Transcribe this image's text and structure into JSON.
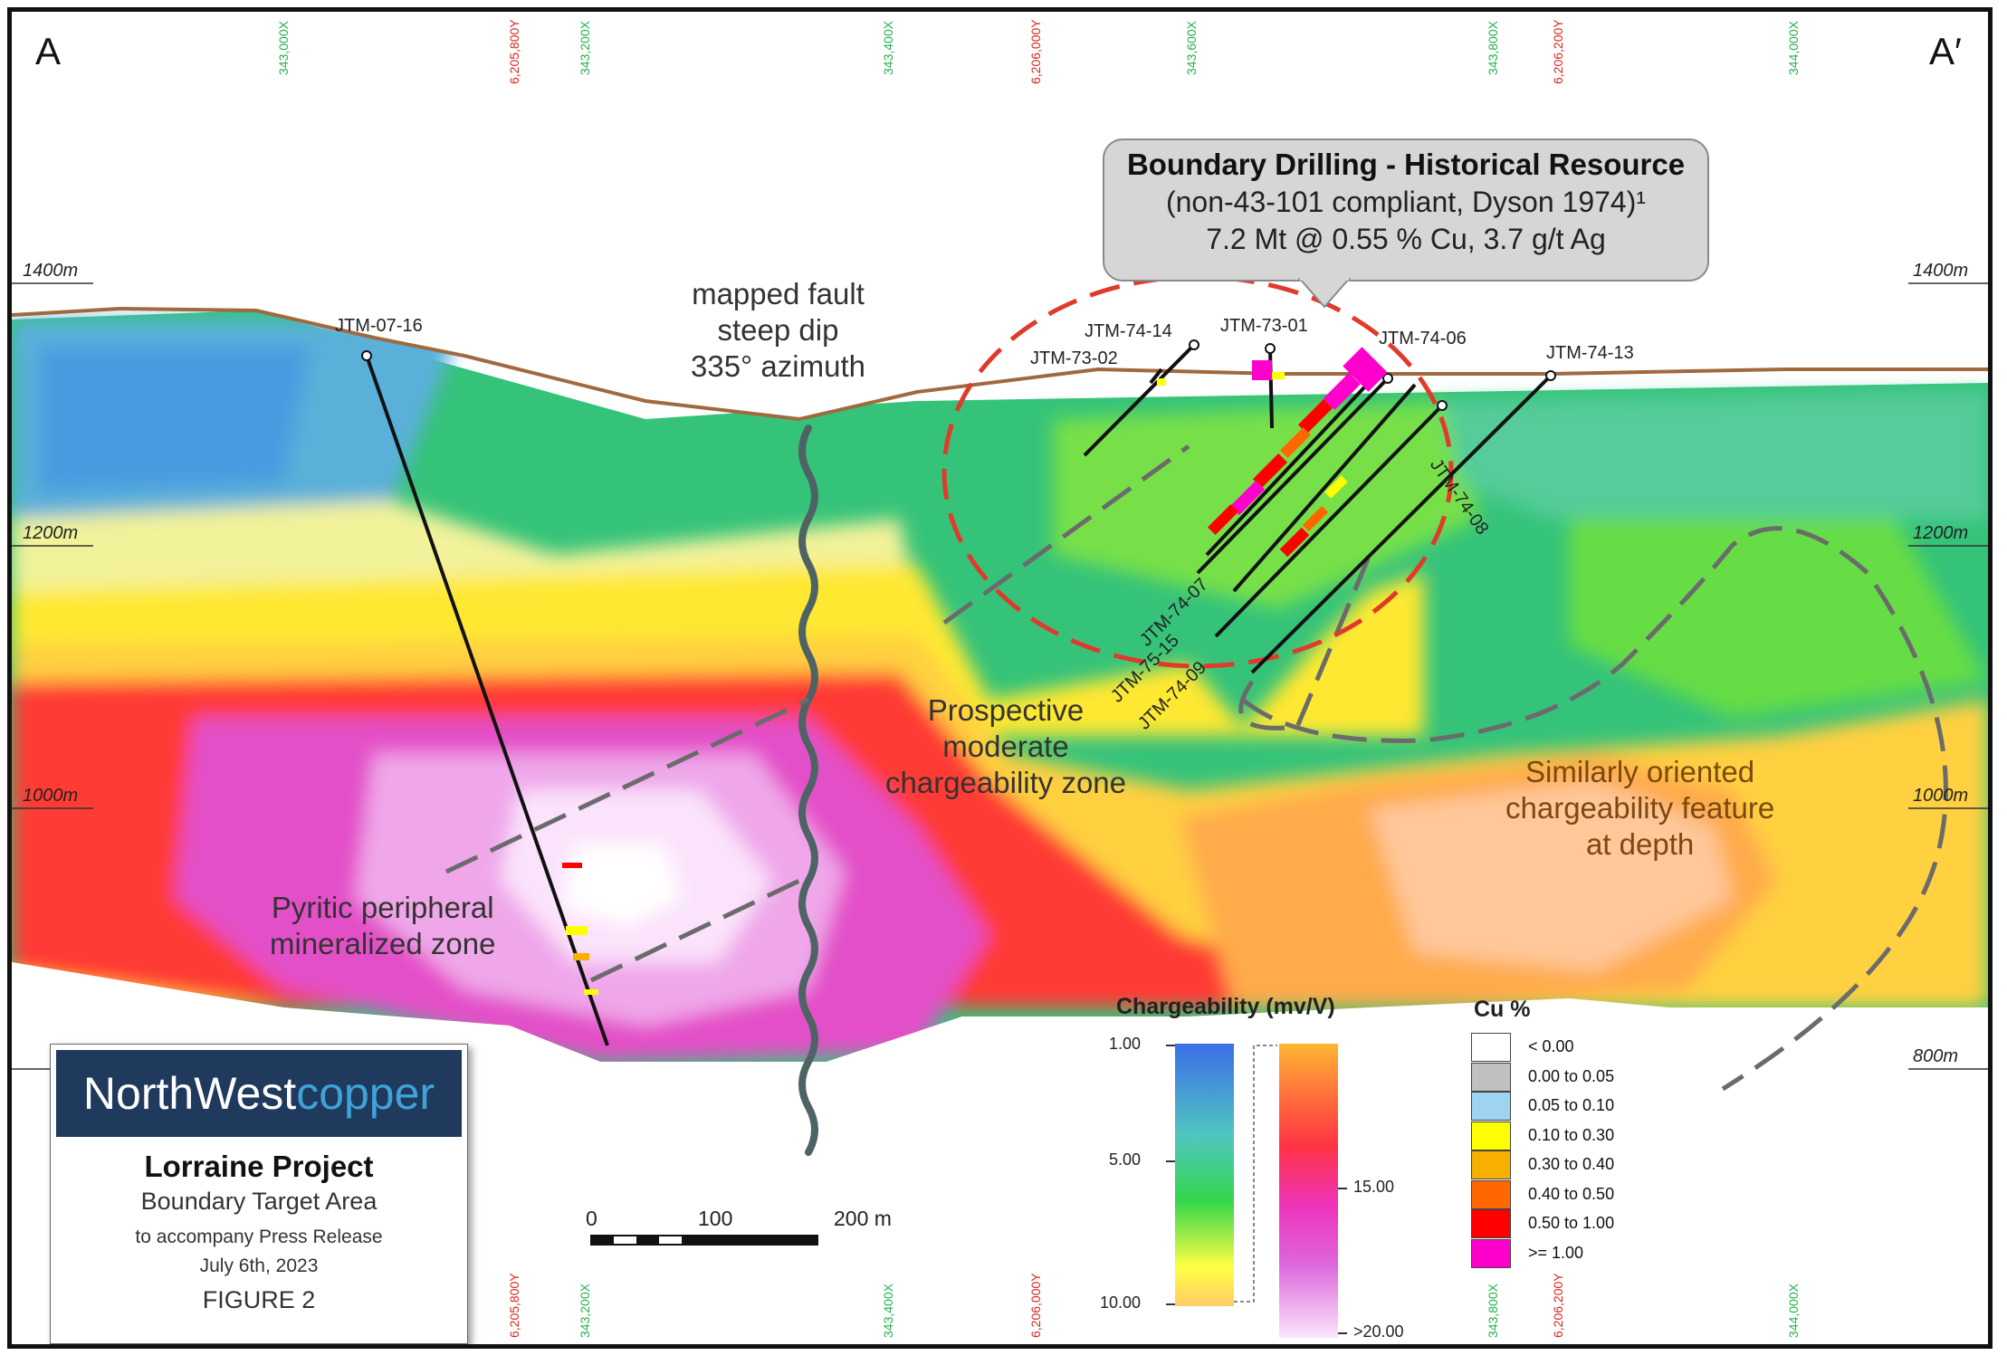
{
  "section": {
    "start_label": "A",
    "end_label": "A′",
    "elevations": [
      "1400m",
      "1200m",
      "1000m",
      "800m"
    ],
    "easting_ticks": [
      "343,000X",
      "343,200X",
      "343,400X",
      "343,600X",
      "343,800X",
      "344,000X"
    ],
    "northing_ticks": [
      "6,205,800Y",
      "6,206,000Y",
      "6,206,200Y"
    ]
  },
  "drillholes": [
    "JTM-07-16",
    "JTM-74-14",
    "JTM-73-02",
    "JTM-73-01",
    "JTM-74-06",
    "JTM-74-13",
    "JTM-74-08",
    "JTM-74-07",
    "JTM-75-15",
    "JTM-74-09"
  ],
  "annotations": {
    "fault": [
      "mapped fault",
      "steep dip",
      "335° azimuth"
    ],
    "prospective": [
      "Prospective",
      "moderate",
      "chargeability zone"
    ],
    "similar": [
      "Similarly oriented",
      "chargeability feature",
      "at depth"
    ],
    "pyritic": [
      "Pyritic peripheral",
      "mineralized zone"
    ]
  },
  "callout": {
    "title": "Boundary Drilling - Historical Resource",
    "subtitle": "(non-43-101 compliant, Dyson 1974)¹",
    "resource": "7.2 Mt @ 0.55 % Cu, 3.7 g/t Ag"
  },
  "title_box": {
    "brand_part1": "NorthWest",
    "brand_part2": "copper",
    "project": "Lorraine Project",
    "area": "Boundary Target Area",
    "note": "to accompany Press Release",
    "date": "July 6th, 2023",
    "figure": "FIGURE 2"
  },
  "scale_bar": {
    "labels": [
      "0",
      "100",
      "200 m"
    ]
  },
  "chargeability_legend": {
    "title": "Chargeability (mv/V)",
    "ticks_left": [
      "1.00",
      "5.00",
      "10.00"
    ],
    "ticks_right": [
      "15.00",
      ">20.00"
    ]
  },
  "cu_legend": {
    "title": "Cu %",
    "classes": [
      {
        "label": "< 0.00",
        "color": "#ffffff"
      },
      {
        "label": "0.00 to 0.05",
        "color": "#c0c0c0"
      },
      {
        "label": "0.05 to 0.10",
        "color": "#9fd3f2"
      },
      {
        "label": "0.10 to 0.30",
        "color": "#ffff00"
      },
      {
        "label": "0.30 to 0.40",
        "color": "#f7b000"
      },
      {
        "label": "0.40 to 0.50",
        "color": "#ff6600"
      },
      {
        "label": "0.50 to 1.00",
        "color": "#ff0000"
      },
      {
        "label": ">= 1.00",
        "color": "#ff00cc"
      }
    ]
  },
  "colors": {
    "topography": "#a0693e",
    "fault_line": "#4e6464",
    "resource_ellipse": "#e03a2b",
    "interpretation_dash": "#6b6b6b",
    "brand_bg": "#1f3a5c",
    "brand_accent": "#3fa3d9"
  }
}
